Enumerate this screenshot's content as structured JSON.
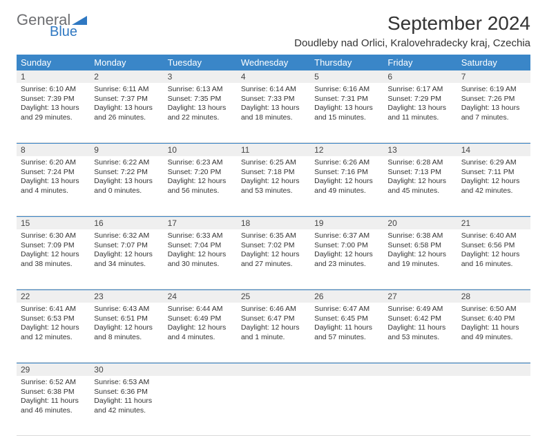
{
  "logo": {
    "line1": "General",
    "line2": "Blue"
  },
  "title": "September 2024",
  "location": "Doudleby nad Orlici, Kralovehradecky kraj, Czechia",
  "colors": {
    "header_bg": "#3a86c8",
    "header_fg": "#ffffff",
    "shade_bg": "#efefef",
    "rule": "#3a86c8",
    "logo_gray": "#6d6e71",
    "logo_blue": "#2f78c2"
  },
  "dow": [
    "Sunday",
    "Monday",
    "Tuesday",
    "Wednesday",
    "Thursday",
    "Friday",
    "Saturday"
  ],
  "weeks": [
    [
      {
        "n": "1",
        "sr": "Sunrise: 6:10 AM",
        "ss": "Sunset: 7:39 PM",
        "d1": "Daylight: 13 hours",
        "d2": "and 29 minutes."
      },
      {
        "n": "2",
        "sr": "Sunrise: 6:11 AM",
        "ss": "Sunset: 7:37 PM",
        "d1": "Daylight: 13 hours",
        "d2": "and 26 minutes."
      },
      {
        "n": "3",
        "sr": "Sunrise: 6:13 AM",
        "ss": "Sunset: 7:35 PM",
        "d1": "Daylight: 13 hours",
        "d2": "and 22 minutes."
      },
      {
        "n": "4",
        "sr": "Sunrise: 6:14 AM",
        "ss": "Sunset: 7:33 PM",
        "d1": "Daylight: 13 hours",
        "d2": "and 18 minutes."
      },
      {
        "n": "5",
        "sr": "Sunrise: 6:16 AM",
        "ss": "Sunset: 7:31 PM",
        "d1": "Daylight: 13 hours",
        "d2": "and 15 minutes."
      },
      {
        "n": "6",
        "sr": "Sunrise: 6:17 AM",
        "ss": "Sunset: 7:29 PM",
        "d1": "Daylight: 13 hours",
        "d2": "and 11 minutes."
      },
      {
        "n": "7",
        "sr": "Sunrise: 6:19 AM",
        "ss": "Sunset: 7:26 PM",
        "d1": "Daylight: 13 hours",
        "d2": "and 7 minutes."
      }
    ],
    [
      {
        "n": "8",
        "sr": "Sunrise: 6:20 AM",
        "ss": "Sunset: 7:24 PM",
        "d1": "Daylight: 13 hours",
        "d2": "and 4 minutes."
      },
      {
        "n": "9",
        "sr": "Sunrise: 6:22 AM",
        "ss": "Sunset: 7:22 PM",
        "d1": "Daylight: 13 hours",
        "d2": "and 0 minutes."
      },
      {
        "n": "10",
        "sr": "Sunrise: 6:23 AM",
        "ss": "Sunset: 7:20 PM",
        "d1": "Daylight: 12 hours",
        "d2": "and 56 minutes."
      },
      {
        "n": "11",
        "sr": "Sunrise: 6:25 AM",
        "ss": "Sunset: 7:18 PM",
        "d1": "Daylight: 12 hours",
        "d2": "and 53 minutes."
      },
      {
        "n": "12",
        "sr": "Sunrise: 6:26 AM",
        "ss": "Sunset: 7:16 PM",
        "d1": "Daylight: 12 hours",
        "d2": "and 49 minutes."
      },
      {
        "n": "13",
        "sr": "Sunrise: 6:28 AM",
        "ss": "Sunset: 7:13 PM",
        "d1": "Daylight: 12 hours",
        "d2": "and 45 minutes."
      },
      {
        "n": "14",
        "sr": "Sunrise: 6:29 AM",
        "ss": "Sunset: 7:11 PM",
        "d1": "Daylight: 12 hours",
        "d2": "and 42 minutes."
      }
    ],
    [
      {
        "n": "15",
        "sr": "Sunrise: 6:30 AM",
        "ss": "Sunset: 7:09 PM",
        "d1": "Daylight: 12 hours",
        "d2": "and 38 minutes."
      },
      {
        "n": "16",
        "sr": "Sunrise: 6:32 AM",
        "ss": "Sunset: 7:07 PM",
        "d1": "Daylight: 12 hours",
        "d2": "and 34 minutes."
      },
      {
        "n": "17",
        "sr": "Sunrise: 6:33 AM",
        "ss": "Sunset: 7:04 PM",
        "d1": "Daylight: 12 hours",
        "d2": "and 30 minutes."
      },
      {
        "n": "18",
        "sr": "Sunrise: 6:35 AM",
        "ss": "Sunset: 7:02 PM",
        "d1": "Daylight: 12 hours",
        "d2": "and 27 minutes."
      },
      {
        "n": "19",
        "sr": "Sunrise: 6:37 AM",
        "ss": "Sunset: 7:00 PM",
        "d1": "Daylight: 12 hours",
        "d2": "and 23 minutes."
      },
      {
        "n": "20",
        "sr": "Sunrise: 6:38 AM",
        "ss": "Sunset: 6:58 PM",
        "d1": "Daylight: 12 hours",
        "d2": "and 19 minutes."
      },
      {
        "n": "21",
        "sr": "Sunrise: 6:40 AM",
        "ss": "Sunset: 6:56 PM",
        "d1": "Daylight: 12 hours",
        "d2": "and 16 minutes."
      }
    ],
    [
      {
        "n": "22",
        "sr": "Sunrise: 6:41 AM",
        "ss": "Sunset: 6:53 PM",
        "d1": "Daylight: 12 hours",
        "d2": "and 12 minutes."
      },
      {
        "n": "23",
        "sr": "Sunrise: 6:43 AM",
        "ss": "Sunset: 6:51 PM",
        "d1": "Daylight: 12 hours",
        "d2": "and 8 minutes."
      },
      {
        "n": "24",
        "sr": "Sunrise: 6:44 AM",
        "ss": "Sunset: 6:49 PM",
        "d1": "Daylight: 12 hours",
        "d2": "and 4 minutes."
      },
      {
        "n": "25",
        "sr": "Sunrise: 6:46 AM",
        "ss": "Sunset: 6:47 PM",
        "d1": "Daylight: 12 hours",
        "d2": "and 1 minute."
      },
      {
        "n": "26",
        "sr": "Sunrise: 6:47 AM",
        "ss": "Sunset: 6:45 PM",
        "d1": "Daylight: 11 hours",
        "d2": "and 57 minutes."
      },
      {
        "n": "27",
        "sr": "Sunrise: 6:49 AM",
        "ss": "Sunset: 6:42 PM",
        "d1": "Daylight: 11 hours",
        "d2": "and 53 minutes."
      },
      {
        "n": "28",
        "sr": "Sunrise: 6:50 AM",
        "ss": "Sunset: 6:40 PM",
        "d1": "Daylight: 11 hours",
        "d2": "and 49 minutes."
      }
    ],
    [
      {
        "n": "29",
        "sr": "Sunrise: 6:52 AM",
        "ss": "Sunset: 6:38 PM",
        "d1": "Daylight: 11 hours",
        "d2": "and 46 minutes."
      },
      {
        "n": "30",
        "sr": "Sunrise: 6:53 AM",
        "ss": "Sunset: 6:36 PM",
        "d1": "Daylight: 11 hours",
        "d2": "and 42 minutes."
      },
      {
        "n": "",
        "sr": "",
        "ss": "",
        "d1": "",
        "d2": ""
      },
      {
        "n": "",
        "sr": "",
        "ss": "",
        "d1": "",
        "d2": ""
      },
      {
        "n": "",
        "sr": "",
        "ss": "",
        "d1": "",
        "d2": ""
      },
      {
        "n": "",
        "sr": "",
        "ss": "",
        "d1": "",
        "d2": ""
      },
      {
        "n": "",
        "sr": "",
        "ss": "",
        "d1": "",
        "d2": ""
      }
    ]
  ]
}
